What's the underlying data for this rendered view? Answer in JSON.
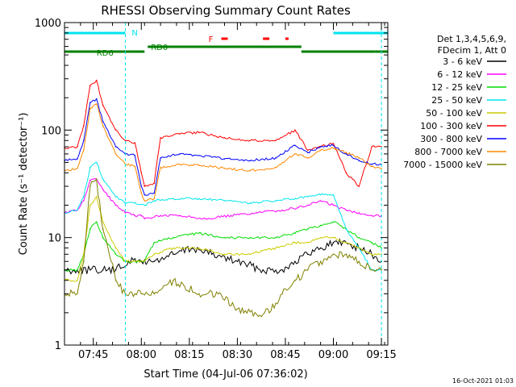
{
  "chart_data": {
    "type": "line",
    "title": "RHESSI Observing Summary Count Rates",
    "xlabel": "Start Time (04-Jul-06 07:36:02)",
    "ylabel": "Count Rate (s⁻¹ detector⁻¹)",
    "yscale": "log",
    "ylim": [
      1,
      1000
    ],
    "xlim": [
      "07:36",
      "09:17"
    ],
    "x_ticks": [
      "07:45",
      "08:00",
      "08:15",
      "08:30",
      "08:45",
      "09:00",
      "09:15"
    ],
    "y_ticks": [
      "1",
      "10",
      "100",
      "1000"
    ],
    "grid": false,
    "legend_header": [
      "Det 1,3,4,5,6,9,",
      "FDecim 1, Att 0"
    ],
    "legend_placement": "right",
    "timestamp": "16-Oct-2021 01:03",
    "flags": [
      {
        "label": "N",
        "color": "#00e5ee",
        "intervals": [
          [
            "07:36",
            "07:55"
          ],
          [
            "09:00",
            "09:17"
          ]
        ]
      },
      {
        "label": "RD0",
        "color": "#008000",
        "intervals": [
          [
            "08:02",
            "08:50"
          ]
        ]
      },
      {
        "label": "RD6",
        "color": "#008000",
        "intervals": [
          [
            "07:36",
            "08:01"
          ],
          [
            "08:50",
            "09:13"
          ],
          [
            "09:13",
            "09:17"
          ]
        ]
      },
      {
        "label": "F",
        "color": "#ff0000",
        "intervals": [
          [
            "08:25",
            "08:27"
          ],
          [
            "08:38",
            "08:40"
          ],
          [
            "08:45",
            "08:46"
          ]
        ]
      }
    ],
    "vlines": [
      "07:55",
      "09:15"
    ],
    "series": [
      {
        "name": "3 - 6 keV",
        "color": "#000000",
        "x": [
          "07:36",
          "07:40",
          "07:44",
          "07:48",
          "07:52",
          "07:56",
          "08:00",
          "08:04",
          "08:10",
          "08:16",
          "08:22",
          "08:30",
          "08:38",
          "08:44",
          "08:48",
          "08:52",
          "08:56",
          "09:00",
          "09:04",
          "09:08",
          "09:12",
          "09:15"
        ],
        "y": [
          5,
          5,
          5,
          5,
          5,
          6,
          6,
          6,
          7,
          8,
          7,
          6,
          5,
          5,
          6,
          7,
          8,
          9,
          9,
          8,
          7,
          6
        ]
      },
      {
        "name": "6 - 12 keV",
        "color": "#ff00ff",
        "x": [
          "07:36",
          "07:40",
          "07:42",
          "07:44",
          "07:46",
          "07:48",
          "07:52",
          "07:55",
          "07:58",
          "08:00",
          "08:01",
          "08:06",
          "08:12",
          "08:20",
          "08:28",
          "08:36",
          "08:44",
          "08:49",
          "08:52",
          "08:56",
          "09:00",
          "09:04",
          "09:08",
          "09:12",
          "09:15"
        ],
        "y": [
          17,
          18,
          22,
          34,
          35,
          28,
          20,
          17,
          16,
          16,
          15,
          16,
          16,
          15,
          16,
          17,
          18,
          19,
          20,
          22,
          20,
          18,
          17,
          16,
          16
        ]
      },
      {
        "name": "12 - 25 keV",
        "color": "#00dd00",
        "x": [
          "07:36",
          "07:40",
          "07:42",
          "07:44",
          "07:46",
          "07:48",
          "07:52",
          "07:55",
          "07:58",
          "08:01",
          "08:04",
          "08:10",
          "08:18",
          "08:26",
          "08:34",
          "08:42",
          "08:48",
          "08:52",
          "08:56",
          "09:00",
          "09:04",
          "09:08",
          "09:12",
          "09:15"
        ],
        "y": [
          5,
          5,
          7,
          12,
          14,
          10,
          7,
          6,
          6,
          6,
          9,
          10,
          11,
          10,
          10,
          10,
          11,
          12,
          13,
          14,
          12,
          10,
          9,
          8
        ]
      },
      {
        "name": "25 - 50 keV",
        "color": "#00e5ee",
        "x": [
          "07:36",
          "07:40",
          "07:42",
          "07:44",
          "07:46",
          "07:48",
          "07:52",
          "07:55",
          "07:58",
          "08:01",
          "08:04",
          "08:10",
          "08:18",
          "08:26",
          "08:34",
          "08:42",
          "08:48",
          "08:52",
          "08:56",
          "09:00",
          "09:04",
          "09:08",
          "09:12",
          "09:15"
        ],
        "y": [
          17,
          18,
          24,
          45,
          50,
          35,
          24,
          21,
          21,
          20,
          22,
          23,
          23,
          22,
          21,
          22,
          23,
          24,
          25,
          25,
          12,
          8,
          5,
          5
        ]
      },
      {
        "name": "50 - 100 keV",
        "color": "#cccc00",
        "x": [
          "07:36",
          "07:40",
          "07:42",
          "07:44",
          "07:46",
          "07:48",
          "07:52",
          "07:55",
          "07:58",
          "08:01",
          "08:04",
          "08:10",
          "08:18",
          "08:26",
          "08:34",
          "08:42",
          "08:48",
          "08:52",
          "08:56",
          "09:00",
          "09:04",
          "09:08",
          "09:12",
          "09:15"
        ],
        "y": [
          4,
          4,
          7,
          20,
          24,
          14,
          8,
          6,
          6,
          6,
          7,
          8,
          8,
          7,
          7,
          8,
          9,
          9,
          10,
          10,
          9,
          8,
          7,
          7
        ]
      },
      {
        "name": "100 - 300 keV",
        "color": "#ff0000",
        "x": [
          "07:36",
          "07:40",
          "07:42",
          "07:44",
          "07:46",
          "07:48",
          "07:52",
          "07:55",
          "07:58",
          "08:00",
          "08:01",
          "08:04",
          "08:06",
          "08:12",
          "08:18",
          "08:26",
          "08:34",
          "08:42",
          "08:48",
          "08:52",
          "08:56",
          "09:00",
          "09:04",
          "09:08",
          "09:12",
          "09:15"
        ],
        "y": [
          68,
          70,
          110,
          260,
          290,
          170,
          100,
          80,
          76,
          40,
          30,
          32,
          85,
          92,
          95,
          85,
          80,
          80,
          100,
          65,
          70,
          75,
          40,
          30,
          70,
          70
        ]
      },
      {
        "name": "300 - 800 keV",
        "color": "#0000ff",
        "x": [
          "07:36",
          "07:40",
          "07:42",
          "07:44",
          "07:46",
          "07:48",
          "07:52",
          "07:55",
          "07:58",
          "08:00",
          "08:01",
          "08:04",
          "08:06",
          "08:12",
          "08:18",
          "08:26",
          "08:34",
          "08:42",
          "08:48",
          "08:52",
          "08:56",
          "09:00",
          "09:04",
          "09:08",
          "09:12",
          "09:15"
        ],
        "y": [
          52,
          54,
          80,
          180,
          195,
          120,
          70,
          60,
          58,
          30,
          25,
          26,
          55,
          60,
          58,
          54,
          52,
          55,
          72,
          62,
          70,
          72,
          60,
          52,
          48,
          48
        ]
      },
      {
        "name": "800 - 7000 keV",
        "color": "#ff8800",
        "x": [
          "07:36",
          "07:40",
          "07:42",
          "07:44",
          "07:46",
          "07:48",
          "07:52",
          "07:55",
          "07:58",
          "08:00",
          "08:01",
          "08:04",
          "08:06",
          "08:12",
          "08:18",
          "08:26",
          "08:34",
          "08:42",
          "08:48",
          "08:52",
          "08:56",
          "09:00",
          "09:04",
          "09:08",
          "09:12",
          "09:15"
        ],
        "y": [
          42,
          44,
          65,
          160,
          175,
          110,
          60,
          48,
          46,
          26,
          22,
          23,
          45,
          48,
          47,
          44,
          42,
          45,
          60,
          55,
          65,
          68,
          62,
          55,
          46,
          44
        ]
      },
      {
        "name": "7000 - 15000 keV",
        "color": "#808000",
        "x": [
          "07:36",
          "07:40",
          "07:42",
          "07:44",
          "07:46",
          "07:48",
          "07:52",
          "07:55",
          "07:58",
          "08:00",
          "08:04",
          "08:10",
          "08:18",
          "08:24",
          "08:32",
          "08:40",
          "08:44",
          "08:48",
          "08:52",
          "08:56",
          "09:00",
          "09:04",
          "09:08",
          "09:12",
          "09:15"
        ],
        "y": [
          3,
          3,
          6,
          30,
          35,
          12,
          4,
          3,
          3,
          3,
          3,
          4,
          3,
          3,
          2,
          2,
          3,
          4,
          5,
          6,
          7,
          7,
          6,
          5,
          5
        ]
      }
    ]
  }
}
